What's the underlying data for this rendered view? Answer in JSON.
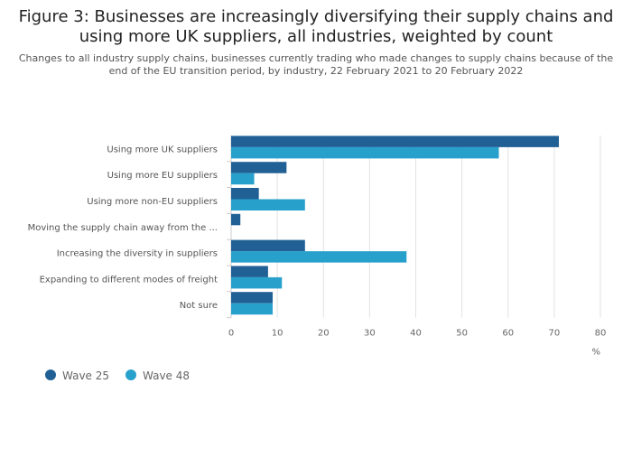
{
  "chart_data": {
    "type": "bar",
    "orientation": "horizontal",
    "title": "Figure 3: Businesses are increasingly diversifying their supply chains and using more UK suppliers, all industries, weighted by count",
    "subtitle": "Changes to all industry supply chains, businesses currently trading who made changes to supply chains because of the end of the EU transition period, by industry, 22 February 2021 to 20 February 2022",
    "categories": [
      "Using more UK suppliers",
      "Using more EU suppliers",
      "Using more non-EU suppliers",
      "Moving the supply chain away from the ...",
      "Increasing the diversity in suppliers",
      "Expanding to different modes of freight",
      "Not sure"
    ],
    "series": [
      {
        "name": "Wave 25",
        "color": "#206095",
        "values": [
          71,
          12,
          6,
          2,
          16,
          8,
          9
        ]
      },
      {
        "name": "Wave 48",
        "color": "#27a0cc",
        "values": [
          58,
          5,
          16,
          0,
          38,
          11,
          9
        ]
      }
    ],
    "xlabel": "%",
    "xlim": [
      0,
      80
    ],
    "xticks": [
      0,
      10,
      20,
      30,
      40,
      50,
      60,
      70,
      80
    ],
    "grid": true,
    "legend": "bottom-left"
  }
}
